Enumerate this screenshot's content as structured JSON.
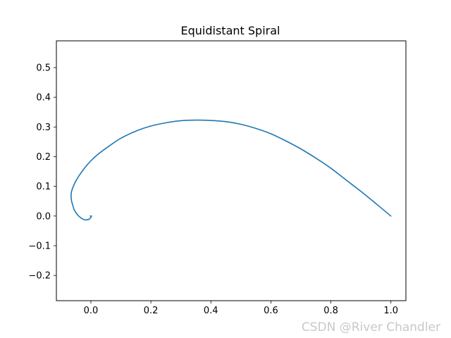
{
  "chart_data": {
    "type": "line",
    "title": "Equidistant Spiral",
    "xlabel": "",
    "ylabel": "",
    "xlim": [
      -0.115,
      1.05
    ],
    "ylim": [
      -0.285,
      0.59
    ],
    "x_ticks": [
      0.0,
      0.2,
      0.4,
      0.6,
      0.8,
      1.0
    ],
    "x_tick_labels": [
      "0.0",
      "0.2",
      "0.4",
      "0.6",
      "0.8",
      "1.0"
    ],
    "y_ticks": [
      -0.2,
      -0.1,
      0.0,
      0.1,
      0.2,
      0.3,
      0.4,
      0.5
    ],
    "y_tick_labels": [
      "−0.2",
      "−0.1",
      "0.0",
      "0.1",
      "0.2",
      "0.3",
      "0.4",
      "0.5"
    ],
    "grid": false,
    "legend": "none",
    "series": [
      {
        "color": "#1f77b4",
        "x": [
          1.0,
          0.95,
          0.9,
          0.85,
          0.8,
          0.75,
          0.7,
          0.65,
          0.6,
          0.55,
          0.5,
          0.45,
          0.4,
          0.35,
          0.3,
          0.25,
          0.2,
          0.15,
          0.1,
          0.05,
          0.02,
          0.0,
          -0.02,
          -0.04,
          -0.055,
          -0.065,
          -0.065,
          -0.06,
          -0.055,
          -0.045,
          -0.035,
          -0.025,
          -0.015,
          -0.005,
          0.0,
          0.002,
          -0.002
        ],
        "y": [
          0.0,
          0.042,
          0.083,
          0.122,
          0.161,
          0.195,
          0.226,
          0.253,
          0.277,
          0.295,
          0.309,
          0.318,
          0.322,
          0.323,
          0.321,
          0.314,
          0.303,
          0.286,
          0.262,
          0.228,
          0.205,
          0.186,
          0.163,
          0.135,
          0.108,
          0.08,
          0.055,
          0.035,
          0.02,
          0.005,
          -0.005,
          -0.011,
          -0.013,
          -0.01,
          -0.004,
          0.0,
          0.0
        ]
      }
    ]
  },
  "watermark": "CSDN @River Chandler"
}
